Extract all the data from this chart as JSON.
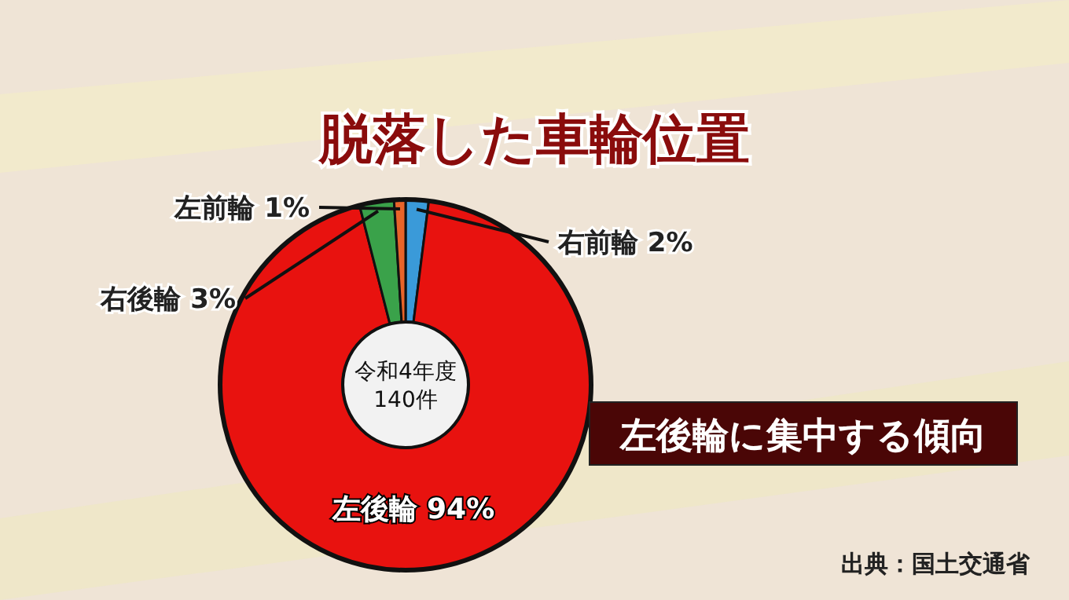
{
  "chart_data": {
    "type": "donut",
    "title": "脱落した車輪位置",
    "categories": [
      "右前輪",
      "左後輪",
      "右後輪",
      "左前輪"
    ],
    "values": [
      2,
      94,
      3,
      1
    ],
    "value_labels": [
      "2%",
      "94%",
      "3%",
      "1%"
    ],
    "colors": [
      "#3a9ad9",
      "#e8120f",
      "#3aa24a",
      "#e8642a"
    ],
    "annotations": [
      "令和4年度\n140件",
      "左後輪に集中する傾向",
      "出典：国土交通省"
    ]
  }
}
